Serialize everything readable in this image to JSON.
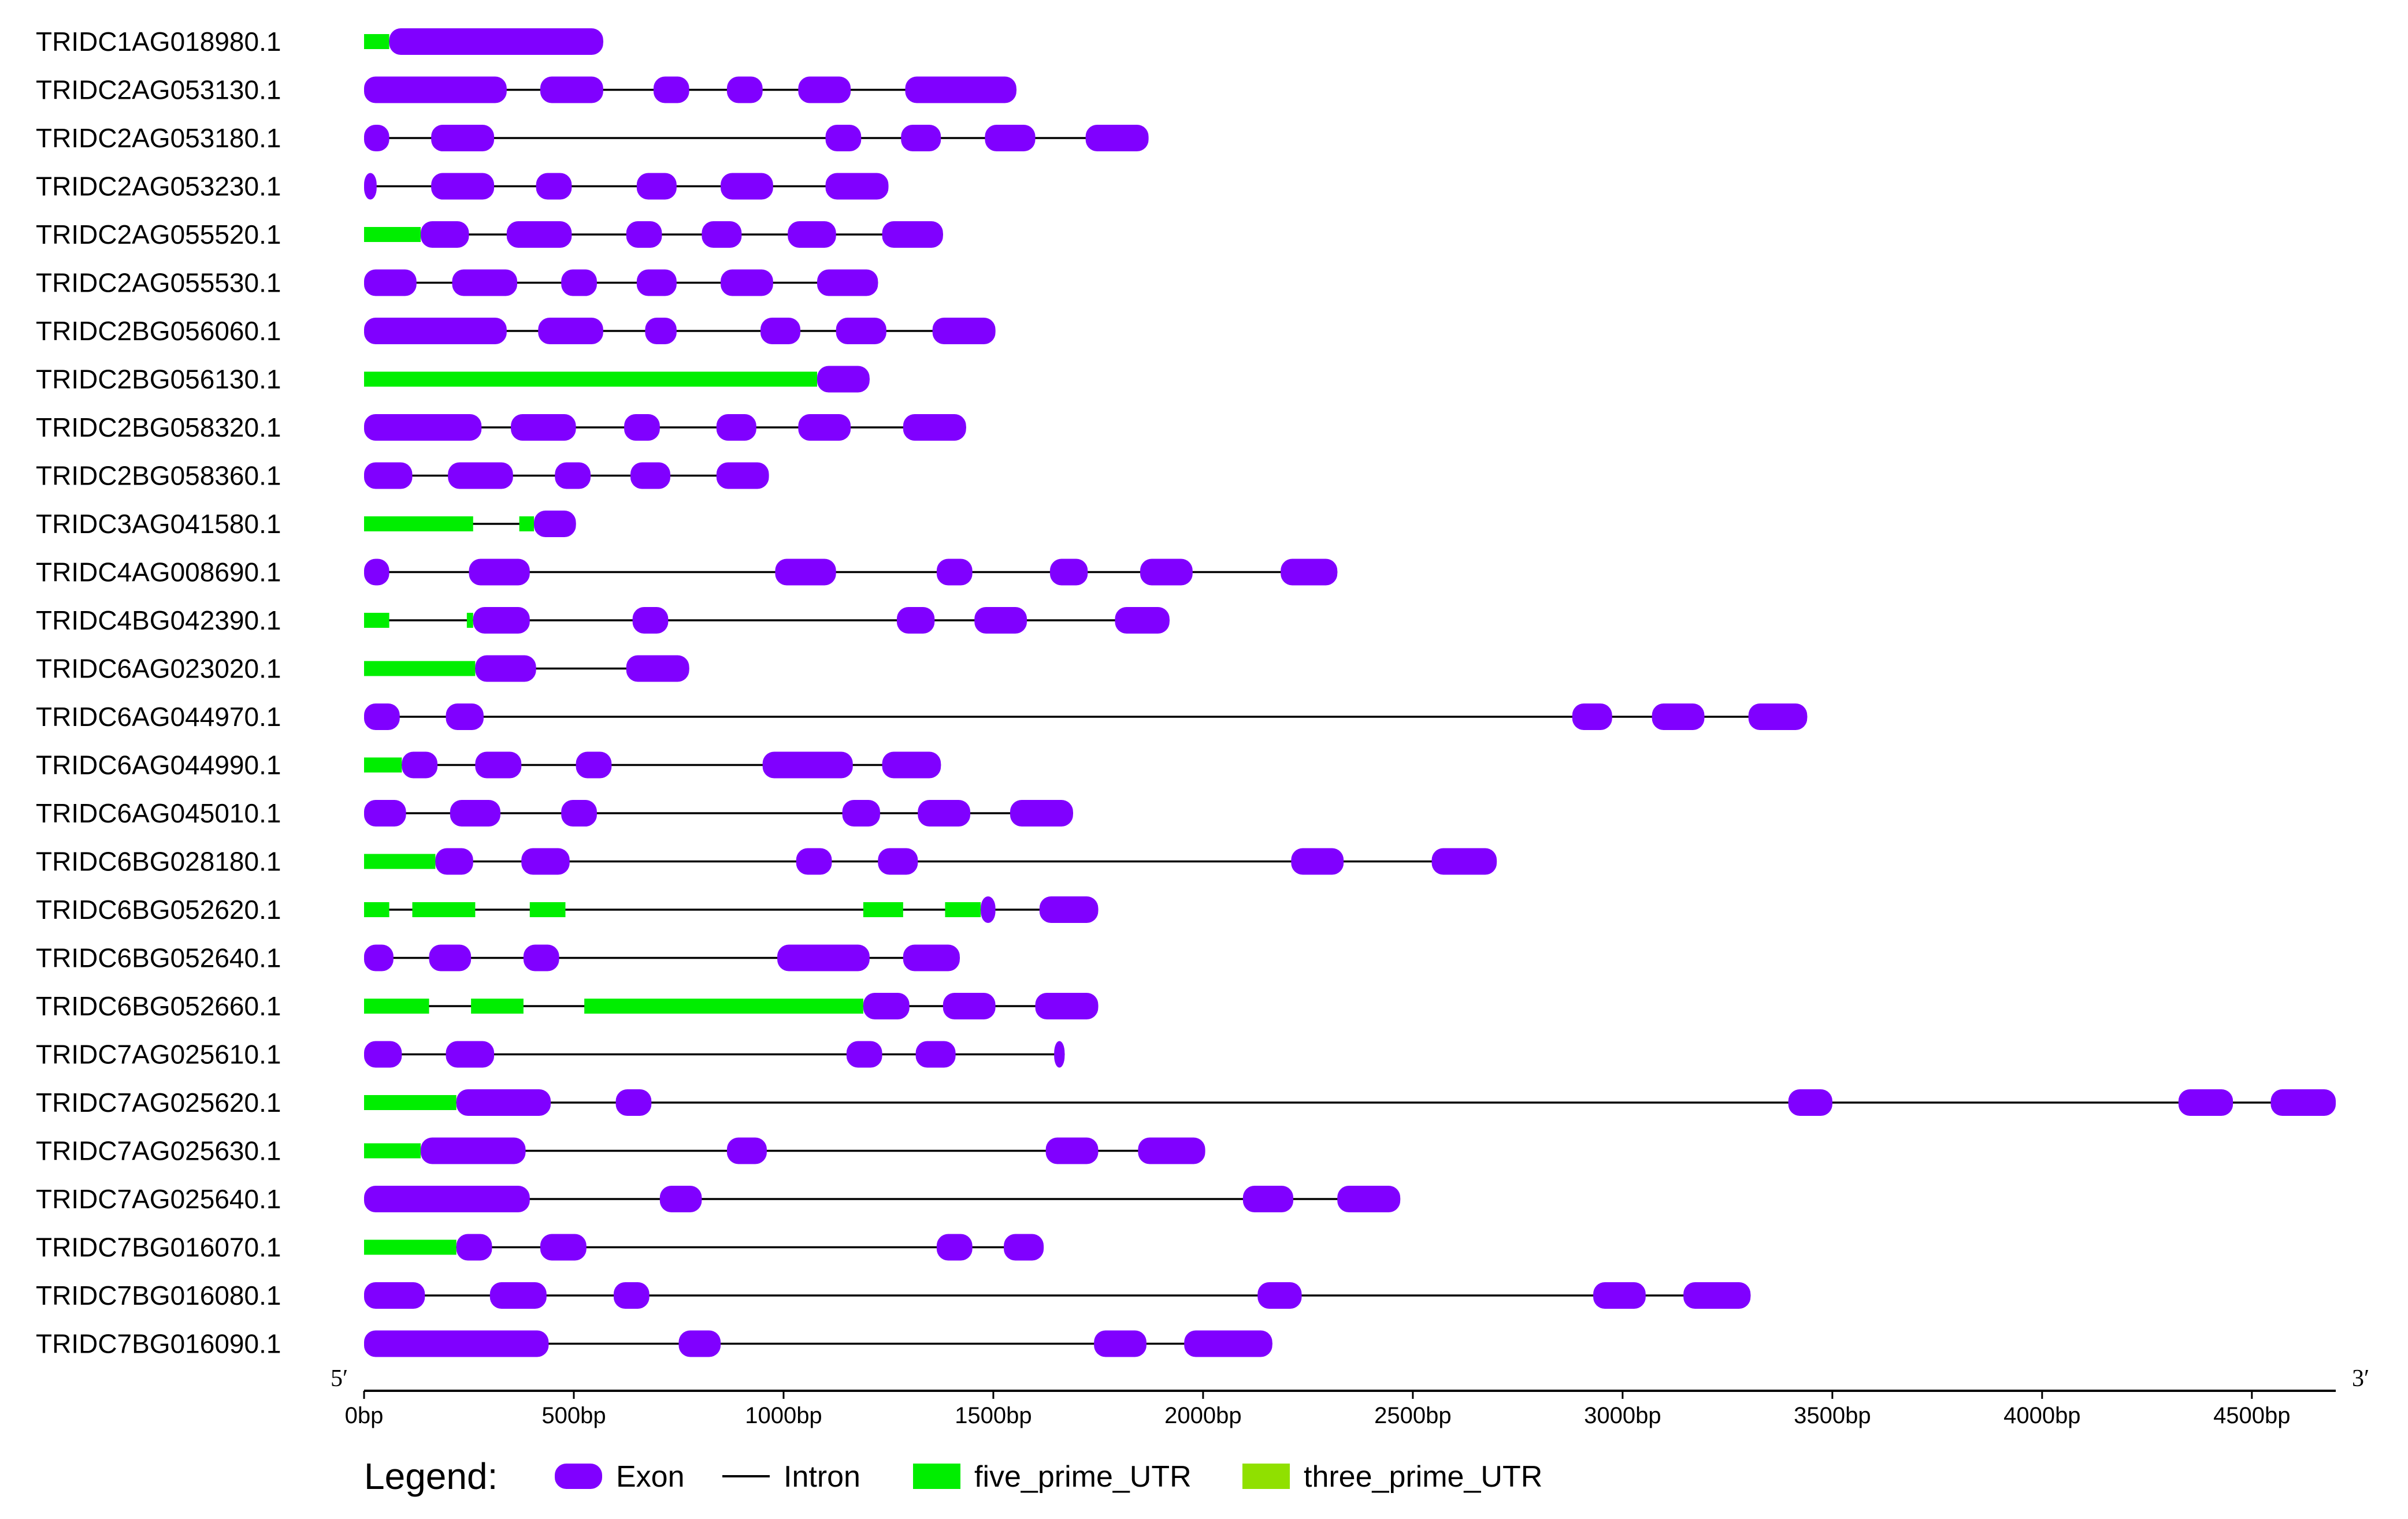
{
  "chart_data": {
    "type": "gene_structure",
    "x_unit": "bp",
    "x_range": [
      0,
      4700
    ],
    "axis": {
      "ticks": [
        0,
        500,
        1000,
        1500,
        2000,
        2500,
        3000,
        3500,
        4000,
        4500
      ],
      "tick_labels": [
        "0bp",
        "500bp",
        "1000bp",
        "1500bp",
        "2000bp",
        "2500bp",
        "3000bp",
        "3500bp",
        "4000bp",
        "4500bp"
      ],
      "start_label": "5′",
      "end_label": "3′"
    },
    "colors": {
      "exon": "#8000ff",
      "intron": "#000000",
      "five_prime_UTR": "#00ee00",
      "three_prime_UTR": "#90e000"
    },
    "legend": {
      "title": "Legend:",
      "items": [
        {
          "key": "exon",
          "label": "Exon"
        },
        {
          "key": "intron",
          "label": "Intron"
        },
        {
          "key": "five_prime_UTR",
          "label": "five_prime_UTR"
        },
        {
          "key": "three_prime_UTR",
          "label": "three_prime_UTR"
        }
      ]
    },
    "genes": [
      {
        "name": "TRIDC1AG018980.1",
        "length": 570,
        "utr5": [
          [
            0,
            60
          ]
        ],
        "exons": [
          [
            60,
            570
          ]
        ]
      },
      {
        "name": "TRIDC2AG053130.1",
        "length": 1555,
        "utr5": [],
        "exons": [
          [
            0,
            340
          ],
          [
            420,
            570
          ],
          [
            690,
            775
          ],
          [
            865,
            950
          ],
          [
            1035,
            1160
          ],
          [
            1290,
            1555
          ]
        ]
      },
      {
        "name": "TRIDC2AG053180.1",
        "length": 1870,
        "utr5": [],
        "exons": [
          [
            0,
            60
          ],
          [
            160,
            310
          ],
          [
            1100,
            1185
          ],
          [
            1280,
            1375
          ],
          [
            1480,
            1600
          ],
          [
            1720,
            1870
          ]
        ]
      },
      {
        "name": "TRIDC2AG053230.1",
        "length": 1250,
        "utr5": [],
        "exons": [
          [
            0,
            30
          ],
          [
            160,
            310
          ],
          [
            410,
            495
          ],
          [
            650,
            745
          ],
          [
            850,
            975
          ],
          [
            1100,
            1250
          ]
        ]
      },
      {
        "name": "TRIDC2AG055520.1",
        "length": 1380,
        "utr5": [
          [
            0,
            135
          ]
        ],
        "exons": [
          [
            135,
            250
          ],
          [
            340,
            495
          ],
          [
            625,
            710
          ],
          [
            805,
            900
          ],
          [
            1010,
            1125
          ],
          [
            1235,
            1380
          ]
        ]
      },
      {
        "name": "TRIDC2AG055530.1",
        "length": 1225,
        "utr5": [],
        "exons": [
          [
            0,
            125
          ],
          [
            210,
            365
          ],
          [
            470,
            555
          ],
          [
            650,
            745
          ],
          [
            850,
            975
          ],
          [
            1080,
            1225
          ]
        ]
      },
      {
        "name": "TRIDC2BG056060.1",
        "length": 1505,
        "utr5": [],
        "exons": [
          [
            0,
            340
          ],
          [
            415,
            570
          ],
          [
            670,
            745
          ],
          [
            945,
            1040
          ],
          [
            1125,
            1245
          ],
          [
            1355,
            1505
          ]
        ]
      },
      {
        "name": "TRIDC2BG056130.1",
        "length": 1205,
        "utr5": [
          [
            0,
            1080
          ]
        ],
        "exons": [
          [
            1080,
            1205
          ]
        ]
      },
      {
        "name": "TRIDC2BG058320.1",
        "length": 1435,
        "utr5": [],
        "exons": [
          [
            0,
            280
          ],
          [
            350,
            505
          ],
          [
            620,
            705
          ],
          [
            840,
            935
          ],
          [
            1035,
            1160
          ],
          [
            1285,
            1435
          ]
        ]
      },
      {
        "name": "TRIDC2BG058360.1",
        "length": 965,
        "utr5": [],
        "exons": [
          [
            0,
            115
          ],
          [
            200,
            355
          ],
          [
            455,
            540
          ],
          [
            635,
            730
          ],
          [
            840,
            965
          ]
        ]
      },
      {
        "name": "TRIDC3AG041580.1",
        "length": 505,
        "utr5": [
          [
            0,
            260
          ],
          [
            370,
            405
          ]
        ],
        "exons": [
          [
            405,
            505
          ]
        ]
      },
      {
        "name": "TRIDC4AG008690.1",
        "length": 2320,
        "utr5": [],
        "exons": [
          [
            0,
            60
          ],
          [
            250,
            395
          ],
          [
            980,
            1125
          ],
          [
            1365,
            1450
          ],
          [
            1635,
            1725
          ],
          [
            1850,
            1975
          ],
          [
            2185,
            2320
          ]
        ]
      },
      {
        "name": "TRIDC4BG042390.1",
        "length": 1920,
        "utr5": [
          [
            0,
            60
          ],
          [
            245,
            260
          ]
        ],
        "exons": [
          [
            260,
            395
          ],
          [
            640,
            725
          ],
          [
            1270,
            1360
          ],
          [
            1455,
            1580
          ],
          [
            1790,
            1920
          ]
        ]
      },
      {
        "name": "TRIDC6AG023020.1",
        "length": 775,
        "utr5": [
          [
            0,
            265
          ]
        ],
        "exons": [
          [
            265,
            410
          ],
          [
            625,
            775
          ]
        ]
      },
      {
        "name": "TRIDC6AG044970.1",
        "length": 3440,
        "utr5": [],
        "exons": [
          [
            0,
            85
          ],
          [
            195,
            285
          ],
          [
            2880,
            2975
          ],
          [
            3070,
            3195
          ],
          [
            3300,
            3440
          ]
        ]
      },
      {
        "name": "TRIDC6AG044990.1",
        "length": 1375,
        "utr5": [
          [
            0,
            90
          ]
        ],
        "exons": [
          [
            90,
            175
          ],
          [
            265,
            375
          ],
          [
            505,
            590
          ],
          [
            950,
            1165
          ],
          [
            1235,
            1375
          ]
        ]
      },
      {
        "name": "TRIDC6AG045010.1",
        "length": 1690,
        "utr5": [],
        "exons": [
          [
            0,
            100
          ],
          [
            205,
            325
          ],
          [
            470,
            555
          ],
          [
            1140,
            1230
          ],
          [
            1320,
            1445
          ],
          [
            1540,
            1690
          ]
        ]
      },
      {
        "name": "TRIDC6BG028180.1",
        "length": 2700,
        "utr5": [
          [
            0,
            170
          ]
        ],
        "exons": [
          [
            170,
            260
          ],
          [
            375,
            490
          ],
          [
            1030,
            1115
          ],
          [
            1225,
            1320
          ],
          [
            2210,
            2335
          ],
          [
            2545,
            2700
          ]
        ]
      },
      {
        "name": "TRIDC6BG052620.1",
        "length": 1750,
        "utr5": [
          [
            0,
            60
          ],
          [
            115,
            265
          ],
          [
            395,
            480
          ],
          [
            1190,
            1285
          ],
          [
            1385,
            1470
          ]
        ],
        "exons": [
          [
            1470,
            1505
          ],
          [
            1610,
            1750
          ]
        ]
      },
      {
        "name": "TRIDC6BG052640.1",
        "length": 1420,
        "utr5": [],
        "exons": [
          [
            0,
            70
          ],
          [
            155,
            255
          ],
          [
            380,
            465
          ],
          [
            985,
            1205
          ],
          [
            1285,
            1420
          ]
        ]
      },
      {
        "name": "TRIDC6BG052660.1",
        "length": 1750,
        "utr5": [
          [
            0,
            155
          ],
          [
            255,
            380
          ],
          [
            525,
            1190
          ]
        ],
        "exons": [
          [
            1190,
            1300
          ],
          [
            1380,
            1505
          ],
          [
            1600,
            1750
          ]
        ]
      },
      {
        "name": "TRIDC7AG025610.1",
        "length": 1670,
        "utr5": [],
        "exons": [
          [
            0,
            90
          ],
          [
            195,
            310
          ],
          [
            1150,
            1235
          ],
          [
            1315,
            1410
          ],
          [
            1645,
            1670
          ]
        ]
      },
      {
        "name": "TRIDC7AG025620.1",
        "length": 4700,
        "utr5": [
          [
            0,
            220
          ]
        ],
        "exons": [
          [
            220,
            445
          ],
          [
            600,
            685
          ],
          [
            3395,
            3500
          ],
          [
            4325,
            4455
          ],
          [
            4545,
            4700
          ]
        ]
      },
      {
        "name": "TRIDC7AG025630.1",
        "length": 2005,
        "utr5": [
          [
            0,
            135
          ]
        ],
        "exons": [
          [
            135,
            385
          ],
          [
            865,
            960
          ],
          [
            1625,
            1750
          ],
          [
            1845,
            2005
          ]
        ]
      },
      {
        "name": "TRIDC7AG025640.1",
        "length": 2470,
        "utr5": [],
        "exons": [
          [
            0,
            395
          ],
          [
            705,
            805
          ],
          [
            2095,
            2215
          ],
          [
            2320,
            2470
          ]
        ]
      },
      {
        "name": "TRIDC7BG016070.1",
        "length": 1620,
        "utr5": [
          [
            0,
            220
          ]
        ],
        "exons": [
          [
            220,
            305
          ],
          [
            420,
            530
          ],
          [
            1365,
            1450
          ],
          [
            1525,
            1620
          ]
        ]
      },
      {
        "name": "TRIDC7BG016080.1",
        "length": 3305,
        "utr5": [],
        "exons": [
          [
            0,
            145
          ],
          [
            300,
            435
          ],
          [
            595,
            680
          ],
          [
            2130,
            2235
          ],
          [
            2930,
            3055
          ],
          [
            3145,
            3305
          ]
        ]
      },
      {
        "name": "TRIDC7BG016090.1",
        "length": 2165,
        "utr5": [],
        "exons": [
          [
            0,
            440
          ],
          [
            750,
            850
          ],
          [
            1740,
            1865
          ],
          [
            1955,
            2165
          ]
        ]
      }
    ]
  }
}
